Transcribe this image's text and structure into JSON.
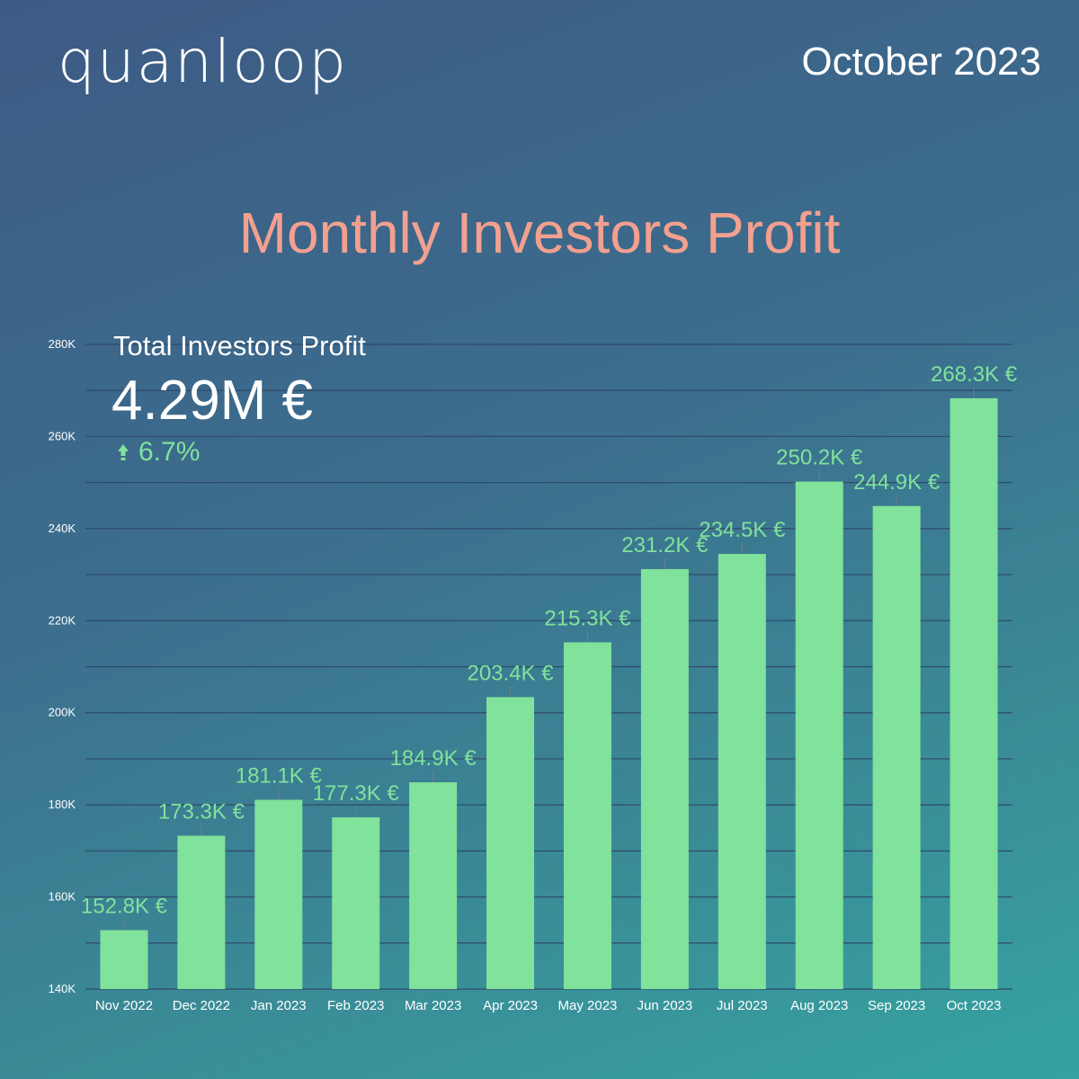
{
  "brand": {
    "logo_text": "quanloop"
  },
  "header": {
    "period": "October 2023"
  },
  "colors": {
    "title": "#f2a08f",
    "bar": "#80e29b",
    "accent_green": "#80e29b",
    "grid": "#2f4a6b",
    "axis_text": "#ffffff"
  },
  "kpi": {
    "label": "Total Investors Profit",
    "value": "4.29M €",
    "change": "6.7%",
    "change_icon": "arrow-up-icon"
  },
  "chart_data": {
    "type": "bar",
    "title": "Monthly Investors Profit",
    "categories": [
      "Nov 2022",
      "Dec 2022",
      "Jan 2023",
      "Feb 2023",
      "Mar 2023",
      "Apr 2023",
      "May 2023",
      "Jun 2023",
      "Jul 2023",
      "Aug 2023",
      "Sep 2023",
      "Oct 2023"
    ],
    "values": [
      152.8,
      173.3,
      181.1,
      177.3,
      184.9,
      203.4,
      215.3,
      231.2,
      234.5,
      250.2,
      244.9,
      268.3
    ],
    "value_unit": "K €",
    "data_labels": [
      "152.8K €",
      "173.3K €",
      "181.1K €",
      "177.3K €",
      "184.9K €",
      "203.4K €",
      "215.3K €",
      "231.2K €",
      "234.5K €",
      "250.2K €",
      "244.9K €",
      "268.3K €"
    ],
    "y_ticks": [
      "140K",
      "160K",
      "180K",
      "200K",
      "220K",
      "240K",
      "260K",
      "280K"
    ],
    "ylim": [
      140,
      280
    ],
    "xlabel": "",
    "ylabel": "",
    "grid": true,
    "legend": "none"
  }
}
